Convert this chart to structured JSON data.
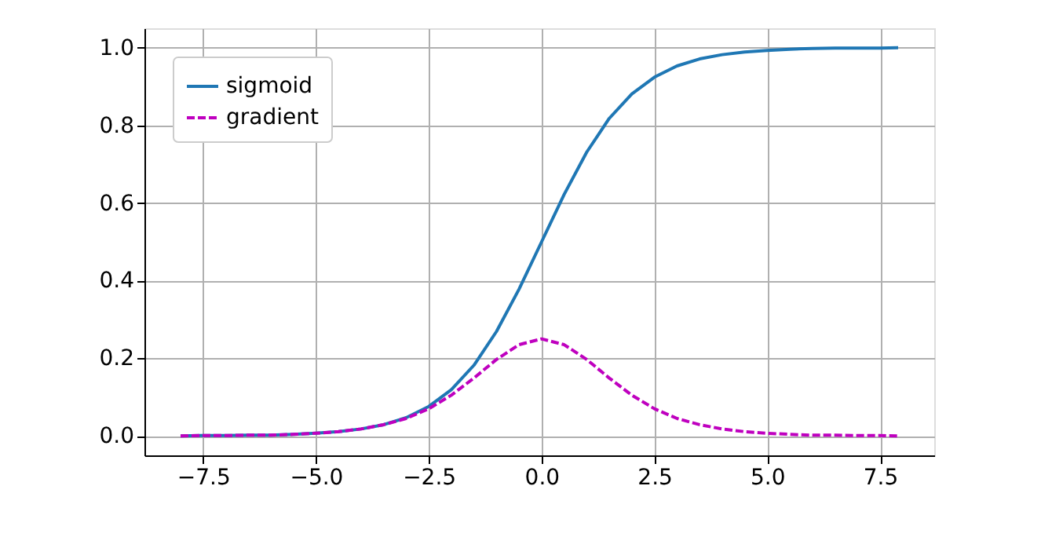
{
  "chart_data": {
    "type": "line",
    "x": [
      -8,
      -7.5,
      -7,
      -6.5,
      -6,
      -5.5,
      -5,
      -4.5,
      -4,
      -3.5,
      -3,
      -2.5,
      -2,
      -1.5,
      -1,
      -0.5,
      0,
      0.5,
      1,
      1.5,
      2,
      2.5,
      3,
      3.5,
      4,
      4.5,
      5,
      5.5,
      6,
      6.5,
      7,
      7.5,
      7.9
    ],
    "series": [
      {
        "name": "sigmoid",
        "color": "#1f77b4",
        "line_style": "solid",
        "values": [
          0.0,
          0.001,
          0.001,
          0.002,
          0.002,
          0.004,
          0.007,
          0.011,
          0.018,
          0.029,
          0.047,
          0.076,
          0.119,
          0.182,
          0.269,
          0.378,
          0.5,
          0.622,
          0.731,
          0.818,
          0.881,
          0.924,
          0.953,
          0.971,
          0.982,
          0.989,
          0.993,
          0.996,
          0.998,
          0.999,
          0.999,
          0.999,
          1.0
        ]
      },
      {
        "name": "gradient",
        "color": "#bf00bf",
        "line_style": "dashed",
        "values": [
          0.0,
          0.001,
          0.001,
          0.002,
          0.002,
          0.004,
          0.007,
          0.011,
          0.018,
          0.029,
          0.045,
          0.07,
          0.105,
          0.149,
          0.197,
          0.235,
          0.25,
          0.235,
          0.197,
          0.149,
          0.105,
          0.07,
          0.045,
          0.029,
          0.018,
          0.011,
          0.007,
          0.004,
          0.002,
          0.002,
          0.001,
          0.001,
          0.0
        ]
      }
    ],
    "xlim": [
      -8.8,
      8.7
    ],
    "ylim": [
      -0.05,
      1.05
    ],
    "xticks": [
      {
        "value": -7.5,
        "label": "−7.5"
      },
      {
        "value": -5,
        "label": "−5.0"
      },
      {
        "value": -2.5,
        "label": "−2.5"
      },
      {
        "value": 0,
        "label": "0.0"
      },
      {
        "value": 2.5,
        "label": "2.5"
      },
      {
        "value": 5,
        "label": "5.0"
      },
      {
        "value": 7.5,
        "label": "7.5"
      }
    ],
    "yticks": [
      {
        "value": 0,
        "label": "0.0"
      },
      {
        "value": 0.2,
        "label": "0.2"
      },
      {
        "value": 0.4,
        "label": "0.4"
      },
      {
        "value": 0.6,
        "label": "0.6"
      },
      {
        "value": 0.8,
        "label": "0.8"
      },
      {
        "value": 1,
        "label": "1.0"
      }
    ],
    "grid": true,
    "legend": "top left"
  }
}
